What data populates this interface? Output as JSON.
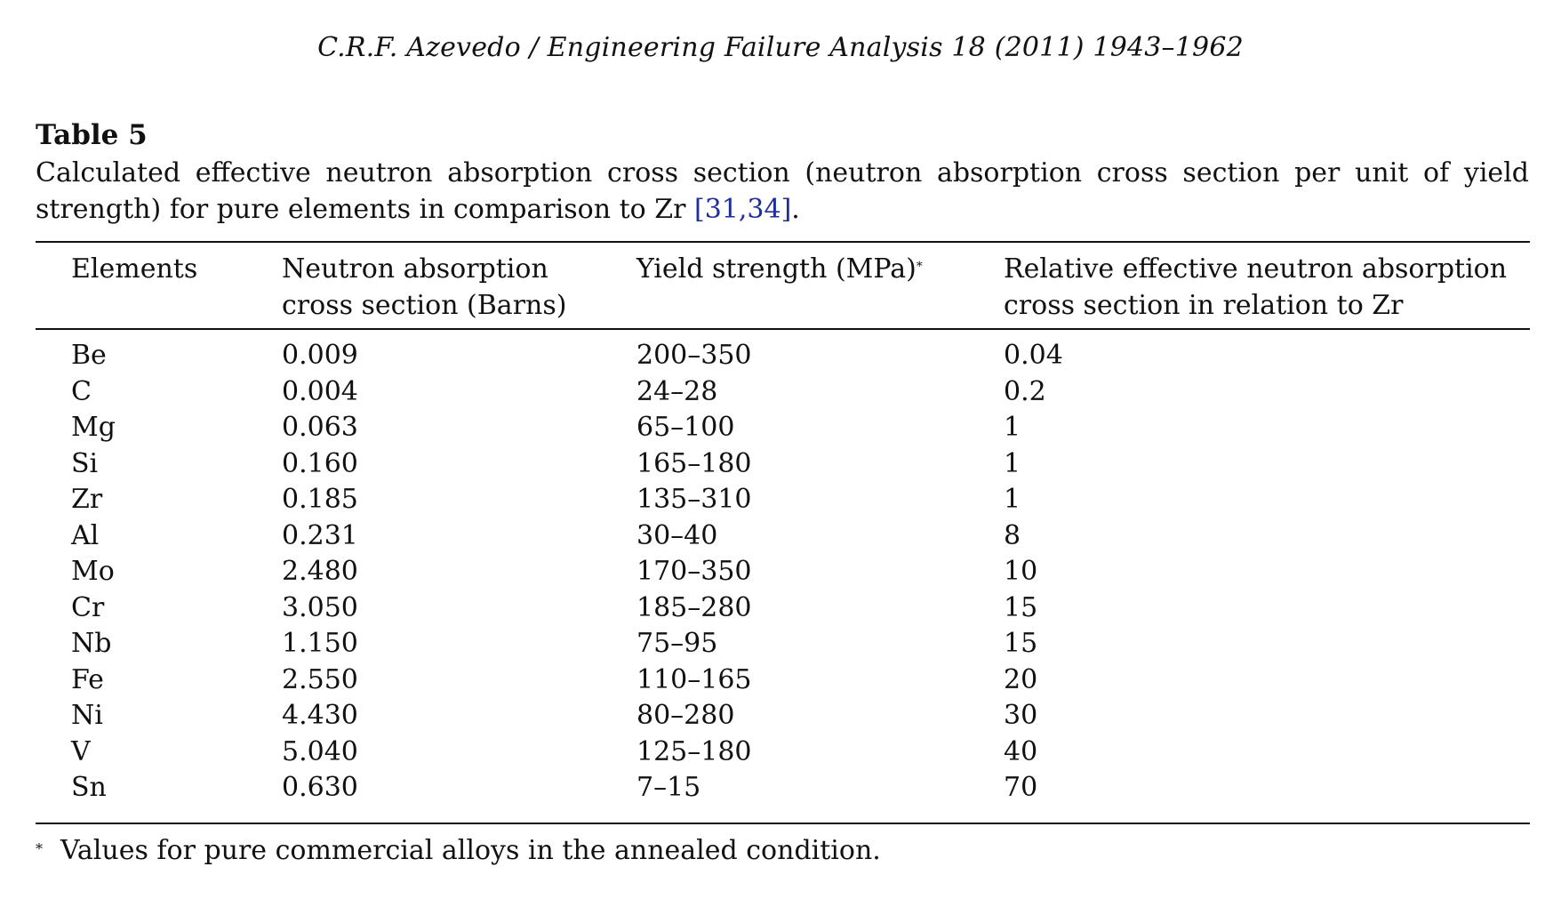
{
  "running_head": "C.R.F. Azevedo / Engineering Failure Analysis 18 (2011) 1943–1962",
  "table_label": "Table 5",
  "caption": {
    "text": "Calculated effective neutron absorption cross section (neutron absorption cross section per unit of yield strength) for pure elements in comparison to Zr ",
    "ref": "[31,34]",
    "end": "."
  },
  "table": {
    "headers": {
      "col1": "Elements",
      "col2_line1": "Neutron absorption",
      "col2_line2": "cross section (Barns)",
      "col3": "Yield strength (MPa)",
      "col3_mark": "*",
      "col4_line1": "Relative effective neutron absorption",
      "col4_line2": "cross section in relation to Zr"
    },
    "rows": [
      [
        "Be",
        "0.009",
        "200–350",
        "0.04"
      ],
      [
        "C",
        "0.004",
        "24–28",
        "0.2"
      ],
      [
        "Mg",
        "0.063",
        "65–100",
        "1"
      ],
      [
        "Si",
        "0.160",
        "165–180",
        "1"
      ],
      [
        "Zr",
        "0.185",
        "135–310",
        "1"
      ],
      [
        "Al",
        "0.231",
        "30–40",
        "8"
      ],
      [
        "Mo",
        "2.480",
        "170–350",
        "10"
      ],
      [
        "Cr",
        "3.050",
        "185–280",
        "15"
      ],
      [
        "Nb",
        "1.150",
        "75–95",
        "15"
      ],
      [
        "Fe",
        "2.550",
        "110–165",
        "20"
      ],
      [
        "Ni",
        "4.430",
        "80–280",
        "30"
      ],
      [
        "V",
        "5.040",
        "125–180",
        "40"
      ],
      [
        "Sn",
        "0.630",
        "7–15",
        "70"
      ]
    ]
  },
  "footnote": {
    "mark": "*",
    "text": "Values for pure commercial alloys in the annealed condition."
  },
  "colors": {
    "text": "#111111",
    "reference_link": "#1f2f9a"
  }
}
